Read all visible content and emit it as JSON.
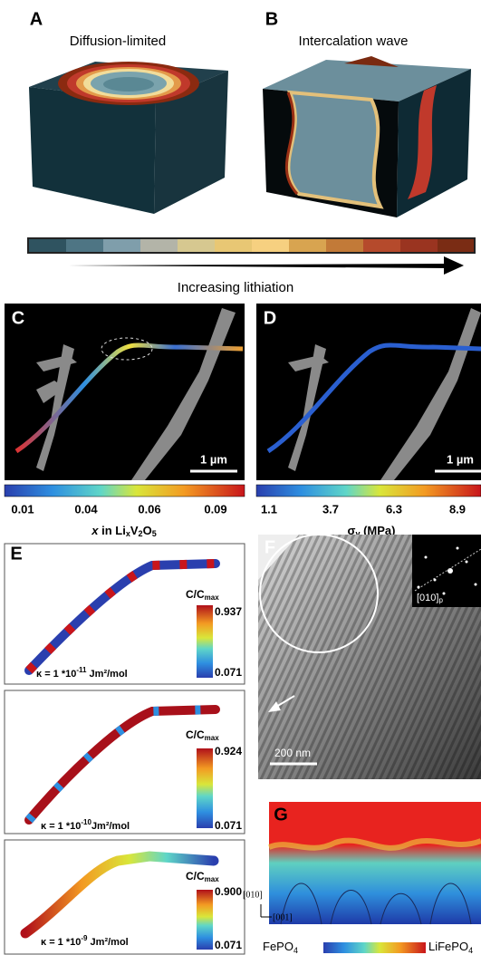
{
  "panels": {
    "a": {
      "letter": "A",
      "title": "Diffusion-limited"
    },
    "b": {
      "letter": "B",
      "title": "Intercalation wave"
    },
    "lithiation_bar": {
      "label": "Increasing lithiation"
    },
    "c": {
      "letter": "C",
      "scale": "1 µm",
      "ticks": [
        "0.01",
        "0.04",
        "0.06",
        "0.09"
      ],
      "axis": {
        "a": "x",
        "b": " in Li",
        "c": "x",
        "d": "V",
        "e": "2",
        "f": "O",
        "g": "5"
      }
    },
    "d": {
      "letter": "D",
      "scale": "1 µm",
      "ticks": [
        "1.1",
        "3.7",
        "6.3",
        "8.9"
      ],
      "axis": {
        "a": "σ",
        "b": "v",
        "c": " (MPa)"
      }
    },
    "e": {
      "letter": "E",
      "cbar_title": {
        "main": "C/C",
        "sub": "max"
      },
      "boxes": [
        {
          "max": "0.937",
          "min": "0.071",
          "kappa": {
            "prefix": "κ = 1 *10",
            "exp": "-11",
            "unit": " Jm²/mol"
          }
        },
        {
          "max": "0.924",
          "min": "0.071",
          "kappa": {
            "prefix": "κ = 1 *10",
            "exp": "-10",
            "unit": "Jm²/mol"
          }
        },
        {
          "max": "0.900",
          "min": "0.071",
          "kappa": {
            "prefix": "κ = 1 *10",
            "exp": "-9",
            "unit": " Jm²/mol"
          }
        }
      ]
    },
    "f": {
      "letter": "F",
      "inset": {
        "main": "[010]",
        "sub": "p"
      },
      "scale": "200 nm"
    },
    "g": {
      "letter": "G",
      "axis_y": "[010]",
      "axis_x": "[001]",
      "left": {
        "main": "FePO",
        "sub": "4"
      },
      "right": {
        "main": "LiFePO",
        "sub": "4"
      }
    }
  }
}
